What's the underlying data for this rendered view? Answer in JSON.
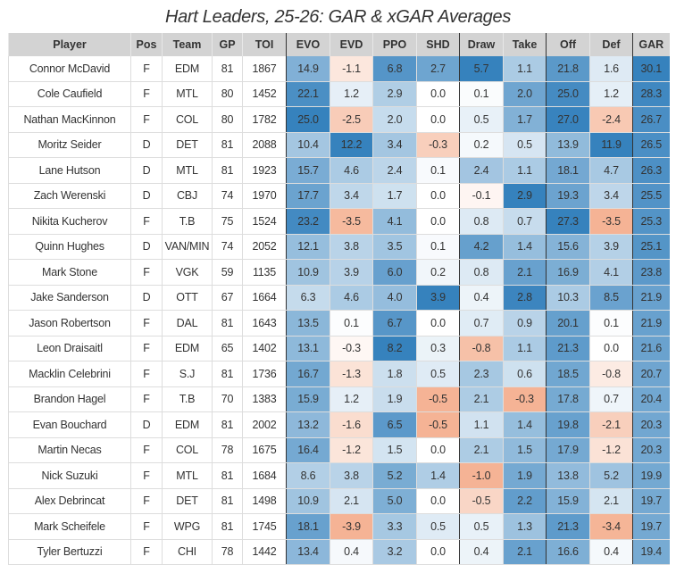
{
  "title": "Hart Leaders, 25-26: GAR & xGAR Averages",
  "colors": {
    "positive": "#2b7bba",
    "negative": "#f2a07a",
    "header_bg": "#d3d3d3"
  },
  "columns": [
    "Player",
    "Pos",
    "Team",
    "GP",
    "TOI",
    "EVO",
    "EVD",
    "PPO",
    "SHD",
    "Draw",
    "Take",
    "Off",
    "Def",
    "GAR"
  ],
  "rows": [
    [
      "Connor McDavid",
      "F",
      "EDM",
      "81",
      "1867",
      "14.9",
      "-1.1",
      "6.8",
      "2.7",
      "5.7",
      "1.1",
      "21.8",
      "1.6",
      "30.1"
    ],
    [
      "Cole Caufield",
      "F",
      "MTL",
      "80",
      "1452",
      "22.1",
      "1.2",
      "2.9",
      "0.0",
      "0.1",
      "2.0",
      "25.0",
      "1.2",
      "28.3"
    ],
    [
      "Nathan MacKinnon",
      "F",
      "COL",
      "80",
      "1782",
      "25.0",
      "-2.5",
      "2.0",
      "0.0",
      "0.5",
      "1.7",
      "27.0",
      "-2.4",
      "26.7"
    ],
    [
      "Moritz Seider",
      "D",
      "DET",
      "81",
      "2088",
      "10.4",
      "12.2",
      "3.4",
      "-0.3",
      "0.2",
      "0.5",
      "13.9",
      "11.9",
      "26.5"
    ],
    [
      "Lane Hutson",
      "D",
      "MTL",
      "81",
      "1923",
      "15.7",
      "4.6",
      "2.4",
      "0.1",
      "2.4",
      "1.1",
      "18.1",
      "4.7",
      "26.3"
    ],
    [
      "Zach Werenski",
      "D",
      "CBJ",
      "74",
      "1970",
      "17.7",
      "3.4",
      "1.7",
      "0.0",
      "-0.1",
      "2.9",
      "19.3",
      "3.4",
      "25.5"
    ],
    [
      "Nikita Kucherov",
      "F",
      "T.B",
      "75",
      "1524",
      "23.2",
      "-3.5",
      "4.1",
      "0.0",
      "0.8",
      "0.7",
      "27.3",
      "-3.5",
      "25.3"
    ],
    [
      "Quinn Hughes",
      "D",
      "VAN/MIN",
      "74",
      "2052",
      "12.1",
      "3.8",
      "3.5",
      "0.1",
      "4.2",
      "1.4",
      "15.6",
      "3.9",
      "25.1"
    ],
    [
      "Mark Stone",
      "F",
      "VGK",
      "59",
      "1135",
      "10.9",
      "3.9",
      "6.0",
      "0.2",
      "0.8",
      "2.1",
      "16.9",
      "4.1",
      "23.8"
    ],
    [
      "Jake Sanderson",
      "D",
      "OTT",
      "67",
      "1664",
      "6.3",
      "4.6",
      "4.0",
      "3.9",
      "0.4",
      "2.8",
      "10.3",
      "8.5",
      "21.9"
    ],
    [
      "Jason Robertson",
      "F",
      "DAL",
      "81",
      "1643",
      "13.5",
      "0.1",
      "6.7",
      "0.0",
      "0.7",
      "0.9",
      "20.1",
      "0.1",
      "21.9"
    ],
    [
      "Leon Draisaitl",
      "F",
      "EDM",
      "65",
      "1402",
      "13.1",
      "-0.3",
      "8.2",
      "0.3",
      "-0.8",
      "1.1",
      "21.3",
      "0.0",
      "21.6"
    ],
    [
      "Macklin Celebrini",
      "F",
      "S.J",
      "81",
      "1736",
      "16.7",
      "-1.3",
      "1.8",
      "0.5",
      "2.3",
      "0.6",
      "18.5",
      "-0.8",
      "20.7"
    ],
    [
      "Brandon Hagel",
      "F",
      "T.B",
      "70",
      "1383",
      "15.9",
      "1.2",
      "1.9",
      "-0.5",
      "2.1",
      "-0.3",
      "17.8",
      "0.7",
      "20.4"
    ],
    [
      "Evan Bouchard",
      "D",
      "EDM",
      "81",
      "2002",
      "13.2",
      "-1.6",
      "6.5",
      "-0.5",
      "1.1",
      "1.4",
      "19.8",
      "-2.1",
      "20.3"
    ],
    [
      "Martin Necas",
      "F",
      "COL",
      "78",
      "1675",
      "16.4",
      "-1.2",
      "1.5",
      "0.0",
      "2.1",
      "1.5",
      "17.9",
      "-1.2",
      "20.3"
    ],
    [
      "Nick Suzuki",
      "F",
      "MTL",
      "81",
      "1684",
      "8.6",
      "3.8",
      "5.2",
      "1.4",
      "-1.0",
      "1.9",
      "13.8",
      "5.2",
      "19.9"
    ],
    [
      "Alex Debrincat",
      "F",
      "DET",
      "81",
      "1498",
      "10.9",
      "2.1",
      "5.0",
      "0.0",
      "-0.5",
      "2.2",
      "15.9",
      "2.1",
      "19.7"
    ],
    [
      "Mark Scheifele",
      "F",
      "WPG",
      "81",
      "1745",
      "18.1",
      "-3.9",
      "3.3",
      "0.5",
      "0.5",
      "1.3",
      "21.3",
      "-3.4",
      "19.7"
    ],
    [
      "Tyler Bertuzzi",
      "F",
      "CHI",
      "78",
      "1442",
      "13.4",
      "0.4",
      "3.2",
      "0.0",
      "0.4",
      "2.1",
      "16.6",
      "0.4",
      "19.4"
    ]
  ]
}
